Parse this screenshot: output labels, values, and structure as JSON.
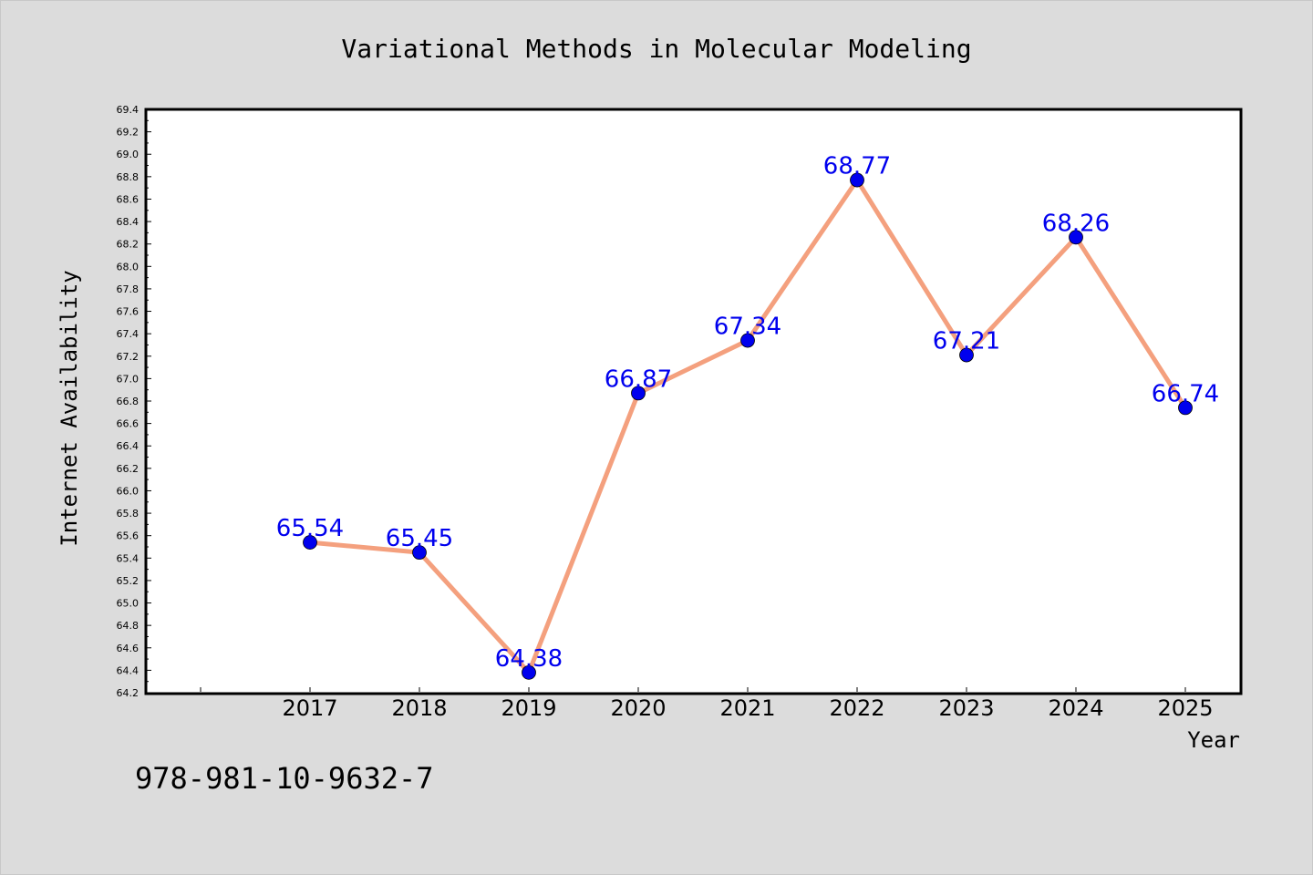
{
  "chart_data": {
    "type": "line",
    "title": "Variational Methods in Molecular Modeling",
    "xlabel": "Year",
    "ylabel": "Internet Availability",
    "categories": [
      "2017",
      "2018",
      "2019",
      "2020",
      "2021",
      "2022",
      "2023",
      "2024",
      "2025"
    ],
    "series": [
      {
        "values": [
          65.54,
          65.45,
          64.38,
          66.87,
          67.34,
          68.77,
          67.21,
          68.26,
          66.74
        ],
        "data_labels": [
          "65.54",
          "65.45",
          "64.38",
          "66.87",
          "67.34",
          "68.77",
          "67.21",
          "68.26",
          "66.74"
        ],
        "line_color": "#f4a07e",
        "marker_color": "#0000ee",
        "label_color": "#0000ee"
      }
    ],
    "ylim": [
      64.2,
      69.4
    ],
    "yticks": [
      "64.2",
      "64.4",
      "64.6",
      "64.8",
      "65.0",
      "65.2",
      "65.4",
      "65.6",
      "65.8",
      "66.0",
      "66.2",
      "66.4",
      "66.6",
      "66.8",
      "67.0",
      "67.2",
      "67.4",
      "67.6",
      "67.8",
      "68.0",
      "68.2",
      "68.4",
      "68.6",
      "68.8",
      "69.0",
      "69.2",
      "69.4"
    ],
    "grid": false,
    "legend": "none"
  },
  "footnote": "978-981-10-9632-7",
  "colors": {
    "background": "#dcdcdc",
    "plot_area": "#ffffff"
  }
}
